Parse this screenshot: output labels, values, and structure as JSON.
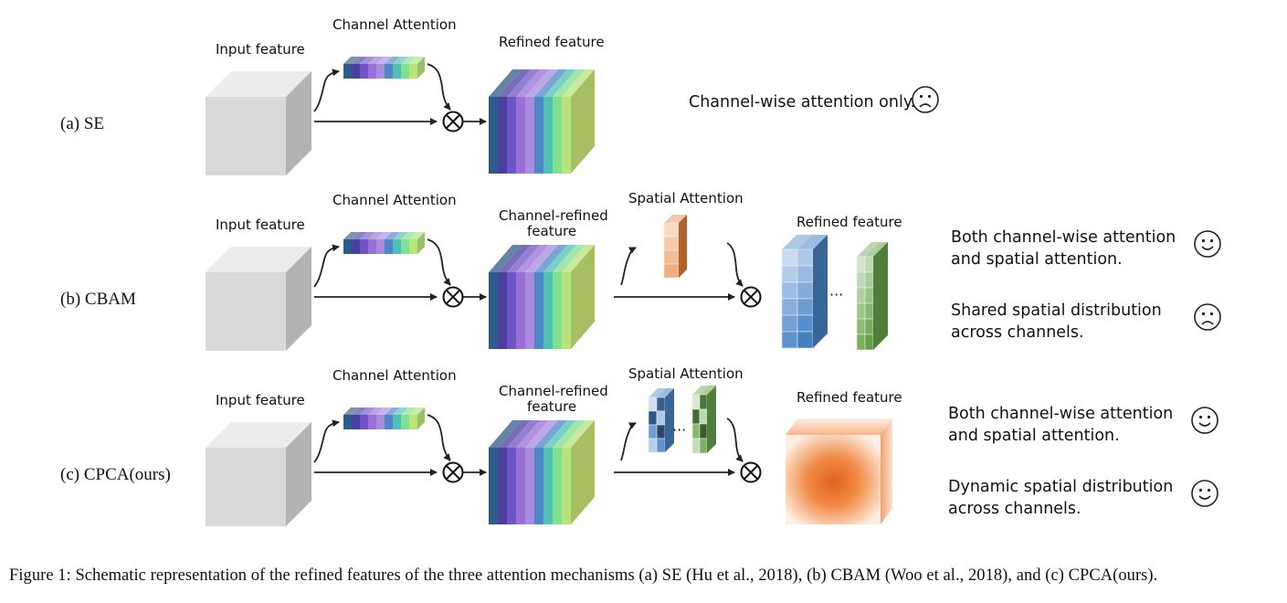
{
  "rows": [
    {
      "label": "(a) SE",
      "input_label": "Input feature",
      "channel_label": "Channel Attention",
      "refined_label_lines": [
        "Refined feature"
      ],
      "spatial_label": "",
      "output_label": "",
      "comments": [
        {
          "lines": [
            "Channel-wise attention only."
          ],
          "face": "sad-face-icon"
        }
      ]
    },
    {
      "label": "(b) CBAM",
      "input_label": "Input feature",
      "channel_label": "Channel Attention",
      "refined_label_lines": [
        "Channel-refined",
        "feature"
      ],
      "spatial_label": "Spatial Attention",
      "output_label": "Refined feature",
      "ellipsis": "···",
      "comments": [
        {
          "lines": [
            "Both channel-wise attention",
            "and spatial attention."
          ],
          "face": "smile-face-icon"
        },
        {
          "lines": [
            "Shared spatial distribution",
            "across channels."
          ],
          "face": "sad-face-icon"
        }
      ]
    },
    {
      "label": "(c) CPCA(ours)",
      "input_label": "Input feature",
      "channel_label": "Channel Attention",
      "refined_label_lines": [
        "Channel-refined",
        "feature"
      ],
      "spatial_label": "Spatial Attention",
      "output_label": "Refined feature",
      "ellipsis": "···",
      "comments": [
        {
          "lines": [
            "Both channel-wise attention",
            "and spatial attention."
          ],
          "face": "smile-face-icon"
        },
        {
          "lines": [
            "Dynamic spatial distribution",
            "across channels."
          ],
          "face": "smile-face-icon"
        }
      ]
    }
  ],
  "multiply_symbol": "⊗",
  "caption": "Figure 1: Schematic representation of the refined features of the three attention mechanisms (a) SE (Hu et al., 2018), (b) CBAM (Woo et al., 2018), and (c) CPCA(ours).",
  "colors": {
    "channel_stripes": [
      "#2d5c8a",
      "#4a3f9e",
      "#6d55c8",
      "#9a6fd6",
      "#a98be0",
      "#4e86c8",
      "#4fc0b5",
      "#7fe08d",
      "#b8e27a"
    ],
    "input_cube_front": "#d9d9d9",
    "input_cube_top": "#ececec",
    "input_cube_side": "#b3b3b3",
    "spatial_orange": "#e8823a",
    "blue_map": "#4a86c8",
    "green_map": "#6aa84f",
    "output_orange": "#ee7722"
  }
}
